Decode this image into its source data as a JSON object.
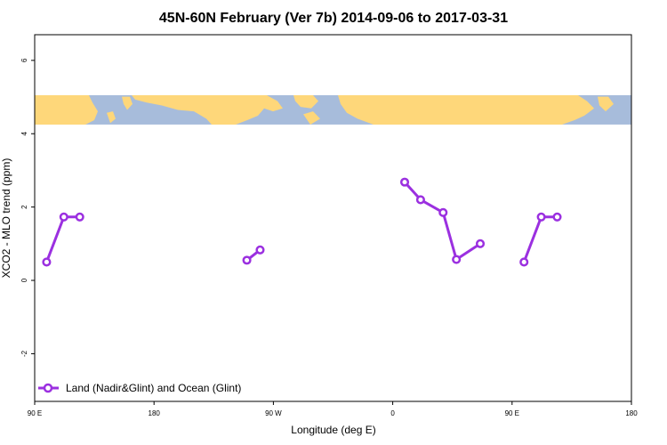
{
  "chart_data": {
    "type": "line",
    "title": "45N-60N February (Ver 7b)   2014-09-06 to 2017-03-31",
    "xlabel": "Longitude (deg E)",
    "ylabel": "XCO2 - MLO trend (ppm)",
    "xlim": [
      90,
      540
    ],
    "ylim": [
      -3.3,
      6.7
    ],
    "x_ticks": [
      {
        "value": 90,
        "label": "90 E"
      },
      {
        "value": 180,
        "label": "180"
      },
      {
        "value": 270,
        "label": "90 W"
      },
      {
        "value": 360,
        "label": "0"
      },
      {
        "value": 450,
        "label": "90 E"
      },
      {
        "value": 540,
        "label": "180"
      }
    ],
    "y_ticks": [
      {
        "value": -2,
        "label": "-2"
      },
      {
        "value": 0,
        "label": "0"
      },
      {
        "value": 2,
        "label": "2"
      },
      {
        "value": 4,
        "label": "4"
      },
      {
        "value": 6,
        "label": "6"
      }
    ],
    "map_band": {
      "y_bottom": 4.25,
      "y_top": 5.05,
      "ocean_color": "#a7bcdb",
      "land_color": "#fed77a"
    },
    "series": [
      {
        "name": "Land (Nadir&Glint) and Ocean (Glint)",
        "color": "#9b30e0",
        "segments": [
          [
            [
              99,
              0.5
            ],
            [
              112,
              1.73
            ],
            [
              124,
              1.73
            ]
          ],
          [
            [
              250,
              0.55
            ],
            [
              260,
              0.83
            ]
          ],
          [
            [
              369,
              2.68
            ],
            [
              381,
              2.2
            ],
            [
              398,
              1.85
            ],
            [
              408,
              0.57
            ],
            [
              426,
              1.0
            ]
          ],
          [
            [
              459,
              0.5
            ],
            [
              472,
              1.73
            ],
            [
              484,
              1.73
            ]
          ]
        ]
      }
    ],
    "legend_position": "bottom-left"
  }
}
